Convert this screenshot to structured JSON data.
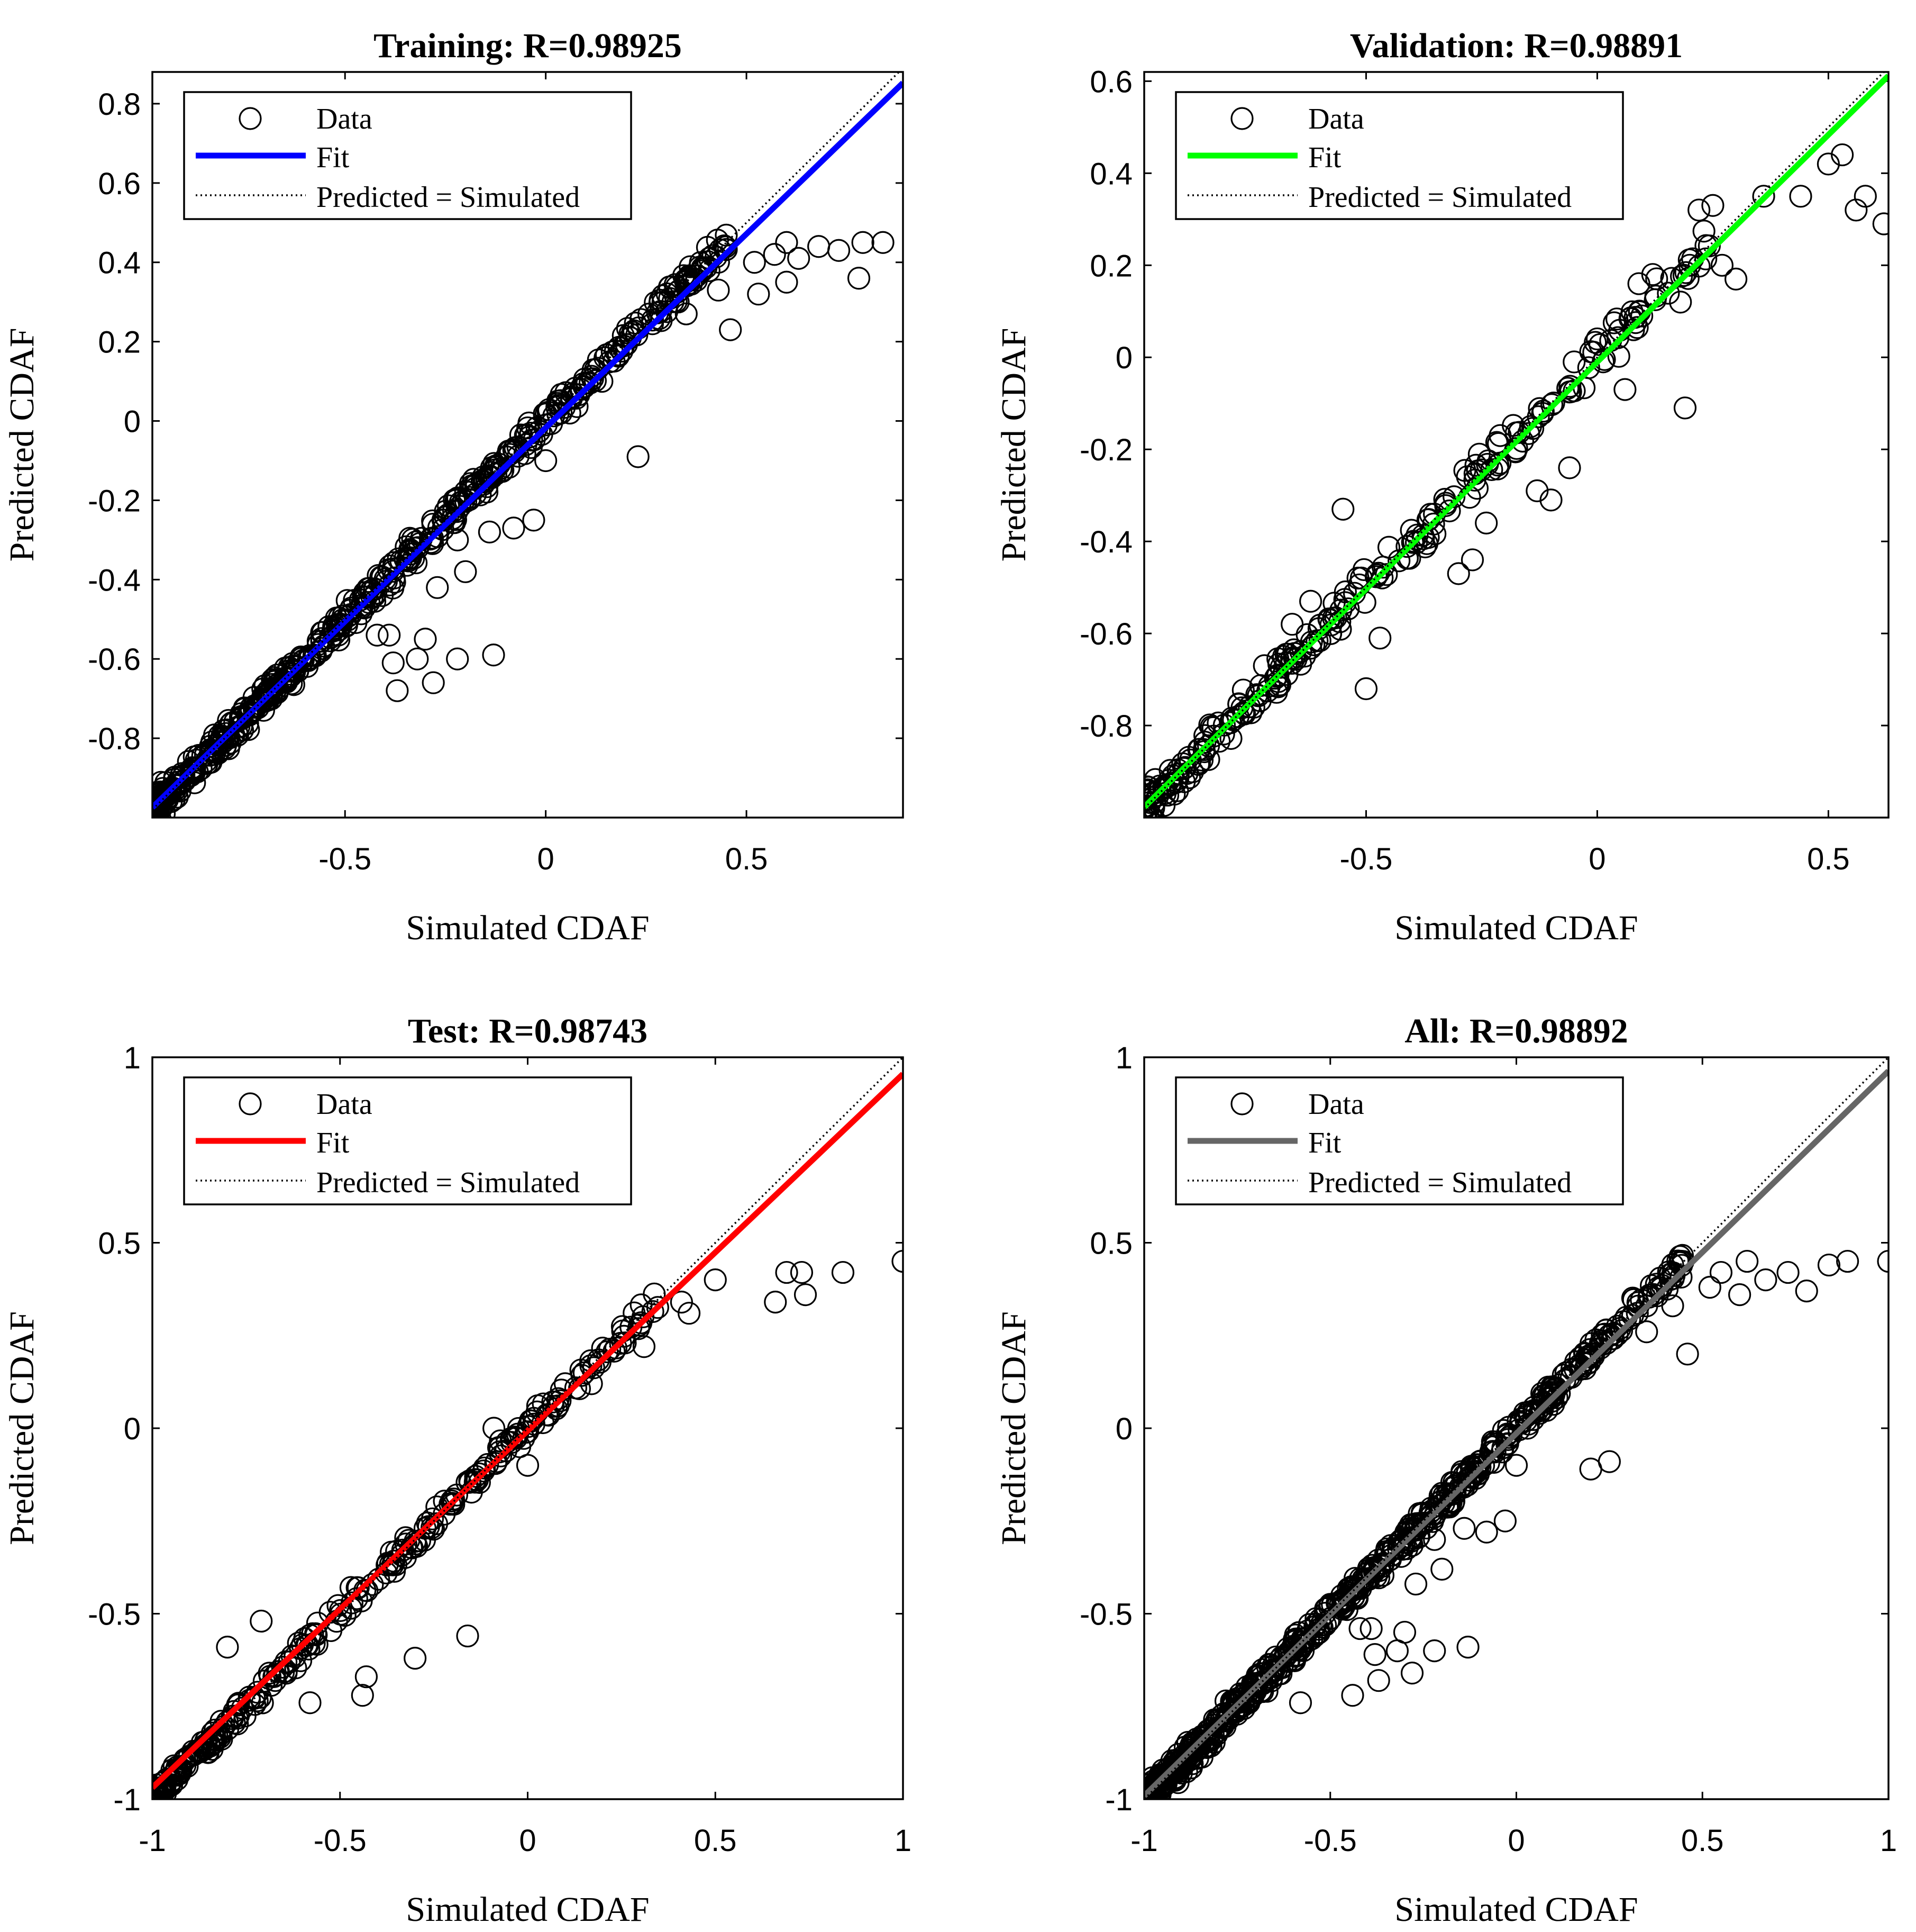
{
  "chart_data": [
    {
      "type": "scatter",
      "title": "Training: R=0.98925",
      "xlabel": "Simulated CDAF",
      "ylabel": "Predicted CDAF",
      "xlim": [
        -0.98,
        0.89
      ],
      "ylim": [
        -1.0,
        0.88
      ],
      "xticks": [
        -0.5,
        0,
        0.5
      ],
      "xtick_labels": [
        "-0.5",
        "0",
        "0.5"
      ],
      "yticks": [
        -0.8,
        -0.6,
        -0.4,
        -0.2,
        0,
        0.2,
        0.4,
        0.6,
        0.8
      ],
      "ytick_labels": [
        "-0.8",
        "-0.6",
        "-0.4",
        "-0.2",
        "0",
        "0.2",
        "0.4",
        "0.6",
        "0.8"
      ],
      "fit": {
        "slope": 0.977,
        "intercept": -0.017,
        "color": "#0000ff"
      },
      "legend": {
        "location": "top-left",
        "entries": [
          "Data",
          "Fit",
          "Predicted = Simulated"
        ]
      },
      "outliers": [
        [
          0.84,
          0.45
        ],
        [
          0.79,
          0.45
        ],
        [
          0.78,
          0.36
        ],
        [
          0.73,
          0.43
        ],
        [
          0.68,
          0.44
        ],
        [
          0.63,
          0.41
        ],
        [
          0.6,
          0.45
        ],
        [
          0.6,
          0.35
        ],
        [
          0.57,
          0.42
        ],
        [
          0.53,
          0.32
        ],
        [
          0.52,
          0.4
        ],
        [
          0.46,
          0.23
        ],
        [
          0.43,
          0.33
        ],
        [
          0.35,
          0.27
        ],
        [
          0.33,
          0.3
        ],
        [
          0.23,
          -0.09
        ],
        [
          0.21,
          0.22
        ],
        [
          0.14,
          0.1
        ],
        [
          0.06,
          0.02
        ],
        [
          0.03,
          0.05
        ],
        [
          0.0,
          -0.1
        ],
        [
          -0.03,
          -0.25
        ],
        [
          -0.08,
          -0.27
        ],
        [
          -0.14,
          -0.28
        ],
        [
          -0.22,
          -0.3
        ],
        [
          -0.2,
          -0.38
        ],
        [
          -0.27,
          -0.42
        ],
        [
          -0.39,
          -0.54
        ],
        [
          -0.3,
          -0.55
        ],
        [
          -0.38,
          -0.61
        ],
        [
          -0.42,
          -0.54
        ],
        [
          -0.32,
          -0.6
        ],
        [
          -0.22,
          -0.6
        ],
        [
          -0.13,
          -0.59
        ],
        [
          -0.28,
          -0.66
        ],
        [
          -0.37,
          -0.68
        ]
      ],
      "cloud": {
        "x_range": [
          -0.98,
          0.45
        ],
        "slope": 1.0,
        "intercept": 0.0,
        "spread": 0.05,
        "count": 550,
        "seed": 11
      }
    },
    {
      "type": "scatter",
      "title": "Validation: R=0.98891",
      "xlabel": "Simulated CDAF",
      "ylabel": "Predicted CDAF",
      "xlim": [
        -0.98,
        0.63
      ],
      "ylim": [
        -1.0,
        0.62
      ],
      "xticks": [
        -0.5,
        0,
        0.5
      ],
      "xtick_labels": [
        "-0.5",
        "0",
        "0.5"
      ],
      "yticks": [
        -0.8,
        -0.6,
        -0.4,
        -0.2,
        0,
        0.2,
        0.4,
        0.6
      ],
      "ytick_labels": [
        "-0.8",
        "-0.6",
        "-0.4",
        "-0.2",
        "0",
        "0.2",
        "0.4",
        "0.6"
      ],
      "fit": {
        "slope": 0.987,
        "intercept": -0.01,
        "color": "#00ff00"
      },
      "legend": {
        "location": "top-left",
        "entries": [
          "Data",
          "Fit",
          "Predicted = Simulated"
        ]
      },
      "outliers": [
        [
          0.62,
          0.29
        ],
        [
          0.58,
          0.35
        ],
        [
          0.56,
          0.32
        ],
        [
          0.53,
          0.44
        ],
        [
          0.5,
          0.42
        ],
        [
          0.44,
          0.35
        ],
        [
          0.36,
          0.35
        ],
        [
          0.3,
          0.17
        ],
        [
          0.27,
          0.2
        ],
        [
          0.25,
          0.33
        ],
        [
          0.22,
          0.32
        ],
        [
          0.2,
          0.2
        ],
        [
          0.19,
          -0.11
        ],
        [
          0.18,
          0.12
        ],
        [
          0.12,
          0.18
        ],
        [
          0.09,
          0.16
        ],
        [
          0.06,
          -0.07
        ],
        [
          0.0,
          0.04
        ],
        [
          -0.05,
          -0.01
        ],
        [
          -0.06,
          -0.24
        ],
        [
          -0.1,
          -0.31
        ],
        [
          -0.13,
          -0.29
        ],
        [
          -0.21,
          -0.17
        ],
        [
          -0.24,
          -0.36
        ],
        [
          -0.27,
          -0.44
        ],
        [
          -0.3,
          -0.47
        ],
        [
          -0.5,
          -0.72
        ],
        [
          -0.47,
          -0.61
        ],
        [
          -0.55,
          -0.33
        ],
        [
          -0.66,
          -0.58
        ],
        [
          -0.62,
          -0.53
        ],
        [
          -0.72,
          -0.67
        ]
      ],
      "cloud": {
        "x_range": [
          -0.98,
          0.25
        ],
        "slope": 1.0,
        "intercept": 0.0,
        "spread": 0.06,
        "count": 260,
        "seed": 23
      }
    },
    {
      "type": "scatter",
      "title": "Test: R=0.98743",
      "xlabel": "Simulated CDAF",
      "ylabel": "Predicted CDAF",
      "xlim": [
        -1,
        1
      ],
      "ylim": [
        -1,
        1
      ],
      "xticks": [
        -1,
        -0.5,
        0,
        0.5,
        1
      ],
      "xtick_labels": [
        "-1",
        "-0.5",
        "0",
        "0.5",
        "1"
      ],
      "yticks": [
        -1,
        -0.5,
        0,
        0.5,
        1
      ],
      "ytick_labels": [
        "-1",
        "-0.5",
        "0",
        "0.5",
        "1"
      ],
      "fit": {
        "slope": 0.962,
        "intercept": -0.007,
        "color": "#ff0000"
      },
      "legend": {
        "location": "top-left",
        "entries": [
          "Data",
          "Fit",
          "Predicted = Simulated"
        ]
      },
      "outliers": [
        [
          1.0,
          0.45
        ],
        [
          0.84,
          0.42
        ],
        [
          0.74,
          0.36
        ],
        [
          0.73,
          0.42
        ],
        [
          0.69,
          0.42
        ],
        [
          0.66,
          0.34
        ],
        [
          0.5,
          0.4
        ],
        [
          0.43,
          0.31
        ],
        [
          0.41,
          0.34
        ],
        [
          0.31,
          0.22
        ],
        [
          0.26,
          0.23
        ],
        [
          0.17,
          0.12
        ],
        [
          0.1,
          0.12
        ],
        [
          0.0,
          -0.1
        ],
        [
          -0.09,
          0.0
        ],
        [
          -0.16,
          -0.56
        ],
        [
          -0.3,
          -0.62
        ],
        [
          -0.43,
          -0.67
        ],
        [
          -0.44,
          -0.72
        ],
        [
          -0.58,
          -0.74
        ],
        [
          -0.71,
          -0.52
        ],
        [
          -0.8,
          -0.59
        ]
      ],
      "cloud": {
        "x_range": [
          -1.0,
          0.35
        ],
        "slope": 1.0,
        "intercept": 0.0,
        "spread": 0.045,
        "count": 300,
        "seed": 37
      }
    },
    {
      "type": "scatter",
      "title": "All: R=0.98892",
      "xlabel": "Simulated CDAF",
      "ylabel": "Predicted CDAF",
      "xlim": [
        -1,
        1
      ],
      "ylim": [
        -1,
        1
      ],
      "xticks": [
        -1,
        -0.5,
        0,
        0.5,
        1
      ],
      "xtick_labels": [
        "-1",
        "-0.5",
        "0",
        "0.5",
        "1"
      ],
      "yticks": [
        -1,
        -0.5,
        0,
        0.5,
        1
      ],
      "ytick_labels": [
        "-1",
        "-0.5",
        "0",
        "0.5",
        "1"
      ],
      "fit": {
        "slope": 0.977,
        "intercept": -0.014,
        "color": "#666666"
      },
      "legend": {
        "location": "top-left",
        "entries": [
          "Data",
          "Fit",
          "Predicted = Simulated"
        ]
      },
      "outliers": [
        [
          1.0,
          0.45
        ],
        [
          0.89,
          0.45
        ],
        [
          0.84,
          0.44
        ],
        [
          0.78,
          0.37
        ],
        [
          0.73,
          0.42
        ],
        [
          0.67,
          0.4
        ],
        [
          0.62,
          0.45
        ],
        [
          0.6,
          0.36
        ],
        [
          0.55,
          0.42
        ],
        [
          0.52,
          0.38
        ],
        [
          0.46,
          0.2
        ],
        [
          0.42,
          0.33
        ],
        [
          0.35,
          0.26
        ],
        [
          0.25,
          -0.09
        ],
        [
          0.2,
          -0.11
        ],
        [
          0.07,
          0.05
        ],
        [
          0.03,
          0.0
        ],
        [
          0.0,
          -0.1
        ],
        [
          -0.03,
          -0.25
        ],
        [
          -0.08,
          -0.28
        ],
        [
          -0.14,
          -0.27
        ],
        [
          -0.22,
          -0.3
        ],
        [
          -0.2,
          -0.38
        ],
        [
          -0.27,
          -0.42
        ],
        [
          -0.39,
          -0.54
        ],
        [
          -0.3,
          -0.55
        ],
        [
          -0.38,
          -0.61
        ],
        [
          -0.42,
          -0.54
        ],
        [
          -0.32,
          -0.6
        ],
        [
          -0.22,
          -0.6
        ],
        [
          -0.13,
          -0.59
        ],
        [
          -0.28,
          -0.66
        ],
        [
          -0.37,
          -0.68
        ],
        [
          -0.44,
          -0.72
        ],
        [
          -0.58,
          -0.74
        ]
      ],
      "cloud": {
        "x_range": [
          -1.0,
          0.45
        ],
        "slope": 1.0,
        "intercept": 0.0,
        "spread": 0.05,
        "count": 650,
        "seed": 53
      }
    }
  ]
}
